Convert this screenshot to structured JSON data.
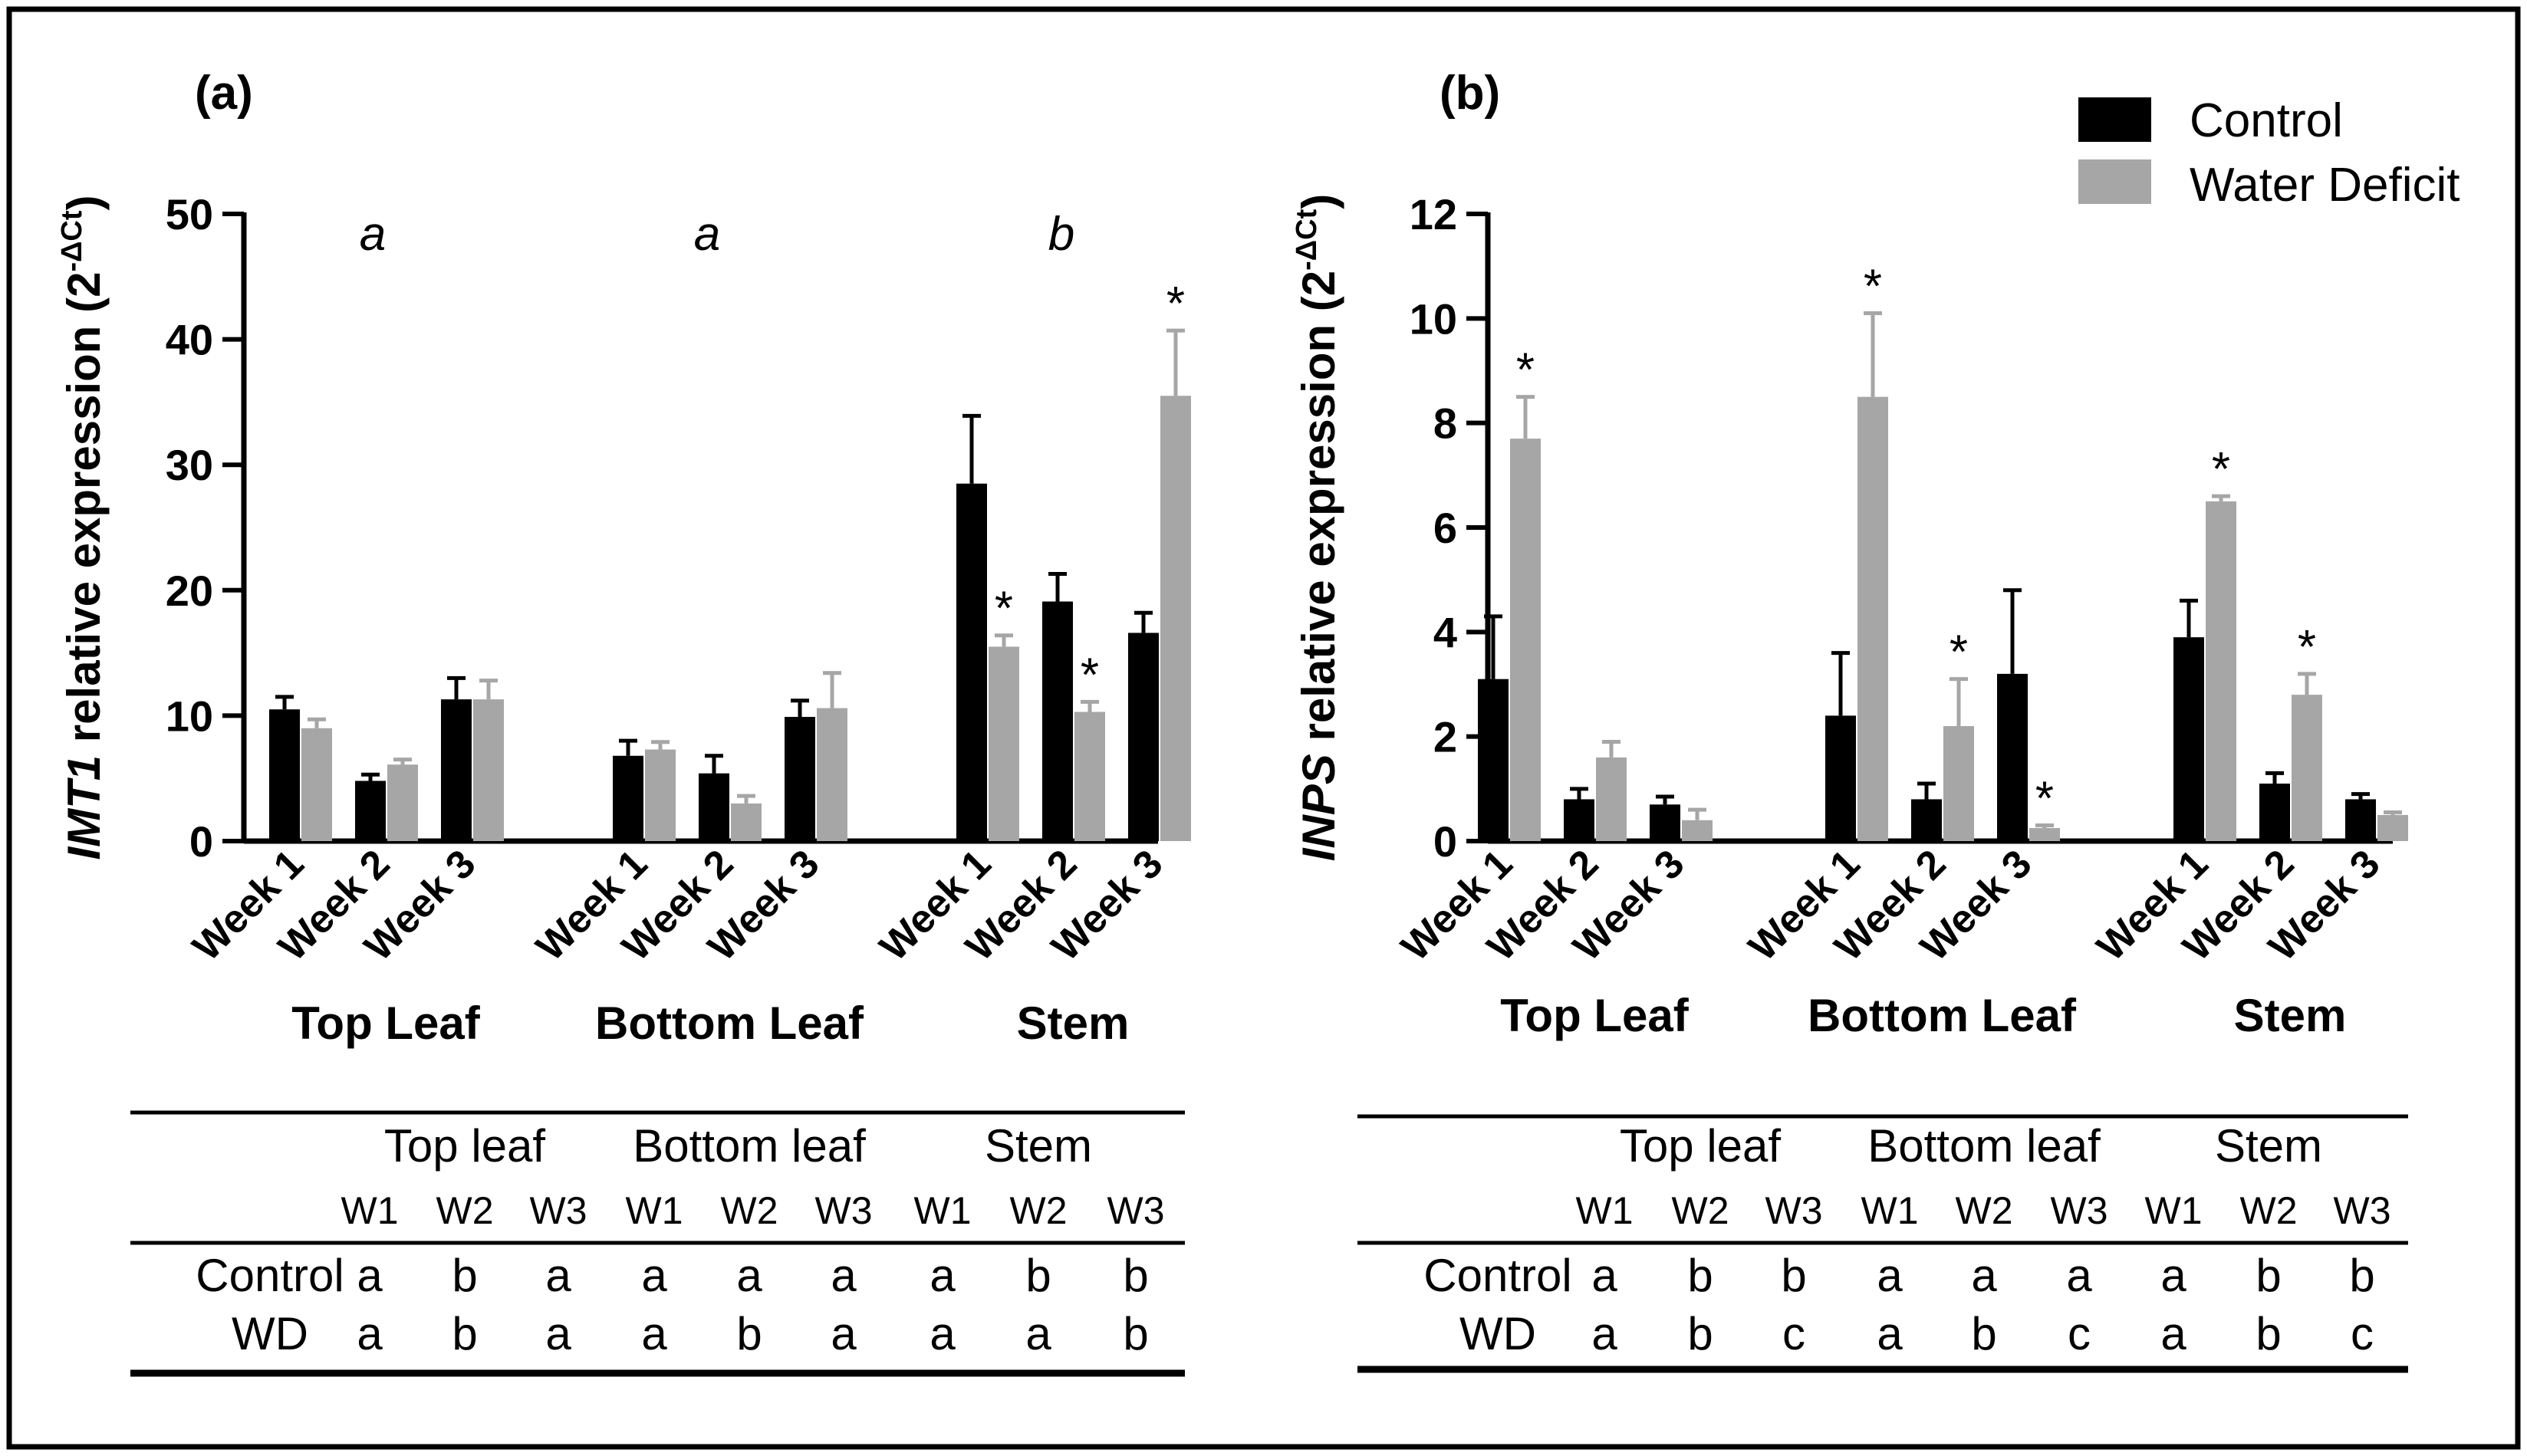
{
  "colors": {
    "control": "#000000",
    "water_deficit": "#a6a6a6",
    "frame": "#000000"
  },
  "legend": {
    "control": "Control",
    "water_deficit": "Water Deficit"
  },
  "chart_data": [
    {
      "panel": "(a)",
      "type": "bar",
      "ylabel_gene": "IMT1",
      "ylabel_rest": " relative expression (2",
      "ylabel_sup": "-ΔCt",
      "ylabel_close": ")",
      "ylim": [
        0,
        50
      ],
      "yticks": [
        0,
        10,
        20,
        30,
        40,
        50
      ],
      "tissues": [
        "Top Leaf",
        "Bottom Leaf",
        "Stem"
      ],
      "weeks": [
        "Week 1",
        "Week 2",
        "Week 3"
      ],
      "group_letters": [
        "a",
        "a",
        "b"
      ],
      "series": [
        {
          "name": "Control",
          "values": [
            [
              10.5,
              4.8,
              11.3
            ],
            [
              6.8,
              5.4,
              9.9
            ],
            [
              28.5,
              19.1,
              16.6
            ]
          ],
          "errors": [
            [
              1.0,
              0.5,
              1.7
            ],
            [
              1.2,
              1.4,
              1.3
            ],
            [
              5.4,
              2.2,
              1.6
            ]
          ],
          "sig": [
            [
              false,
              false,
              false
            ],
            [
              false,
              false,
              false
            ],
            [
              false,
              false,
              false
            ]
          ]
        },
        {
          "name": "Water Deficit",
          "values": [
            [
              9.0,
              6.1,
              11.3
            ],
            [
              7.3,
              3.0,
              10.6
            ],
            [
              15.5,
              10.3,
              35.5
            ]
          ],
          "errors": [
            [
              0.7,
              0.4,
              1.5
            ],
            [
              0.6,
              0.6,
              2.8
            ],
            [
              0.9,
              0.8,
              5.2
            ]
          ],
          "sig": [
            [
              false,
              false,
              false
            ],
            [
              false,
              false,
              false
            ],
            [
              true,
              true,
              true
            ]
          ]
        }
      ],
      "table": {
        "headers": [
          "Top leaf",
          "Bottom leaf",
          "Stem"
        ],
        "subheaders": [
          "W1",
          "W2",
          "W3",
          "W1",
          "W2",
          "W3",
          "W1",
          "W2",
          "W3"
        ],
        "rows": [
          {
            "label": "Control",
            "cells": [
              "a",
              "b",
              "a",
              "a",
              "a",
              "a",
              "a",
              "b",
              "b"
            ]
          },
          {
            "label": "WD",
            "cells": [
              "a",
              "b",
              "a",
              "a",
              "b",
              "a",
              "a",
              "a",
              "b"
            ]
          }
        ]
      }
    },
    {
      "panel": "(b)",
      "type": "bar",
      "ylabel_gene": "INPS",
      "ylabel_rest": " relative expression (2",
      "ylabel_sup": "-ΔCt",
      "ylabel_close": ")",
      "ylim": [
        0,
        12
      ],
      "yticks": [
        0,
        2,
        4,
        6,
        8,
        10,
        12
      ],
      "tissues": [
        "Top Leaf",
        "Bottom Leaf",
        "Stem"
      ],
      "weeks": [
        "Week 1",
        "Week 2",
        "Week 3"
      ],
      "group_letters": [],
      "series": [
        {
          "name": "Control",
          "values": [
            [
              3.1,
              0.8,
              0.7
            ],
            [
              2.4,
              0.8,
              3.2
            ],
            [
              3.9,
              1.1,
              0.8
            ]
          ],
          "errors": [
            [
              1.2,
              0.2,
              0.15
            ],
            [
              1.2,
              0.3,
              1.6
            ],
            [
              0.7,
              0.2,
              0.1
            ]
          ],
          "sig": [
            [
              false,
              false,
              false
            ],
            [
              false,
              false,
              false
            ],
            [
              false,
              false,
              false
            ]
          ]
        },
        {
          "name": "Water Deficit",
          "values": [
            [
              7.7,
              1.6,
              0.4
            ],
            [
              8.5,
              2.2,
              0.25
            ],
            [
              6.5,
              2.8,
              0.5
            ]
          ],
          "errors": [
            [
              0.8,
              0.3,
              0.2
            ],
            [
              1.6,
              0.9,
              0.05
            ],
            [
              0.1,
              0.4,
              0.05
            ]
          ],
          "sig": [
            [
              true,
              false,
              false
            ],
            [
              true,
              true,
              true
            ],
            [
              true,
              true,
              false
            ]
          ]
        }
      ],
      "table": {
        "headers": [
          "Top leaf",
          "Bottom leaf",
          "Stem"
        ],
        "subheaders": [
          "W1",
          "W2",
          "W3",
          "W1",
          "W2",
          "W3",
          "W1",
          "W2",
          "W3"
        ],
        "rows": [
          {
            "label": "Control",
            "cells": [
              "a",
              "b",
              "b",
              "a",
              "a",
              "a",
              "a",
              "b",
              "b"
            ]
          },
          {
            "label": "WD",
            "cells": [
              "a",
              "b",
              "c",
              "a",
              "b",
              "c",
              "a",
              "b",
              "c"
            ]
          }
        ]
      }
    }
  ]
}
